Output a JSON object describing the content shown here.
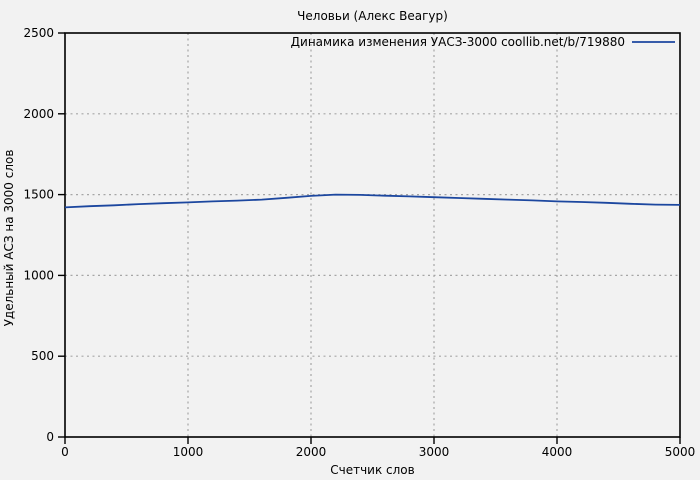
{
  "window": {
    "background_color": "#f2f2f2"
  },
  "chart_data": {
    "type": "line",
    "title": "Человьи (Алекс Веагур)",
    "xlabel": "Счетчик слов",
    "ylabel": "Удельный АСЗ на 3000 слов",
    "xlim": [
      0,
      5000
    ],
    "ylim": [
      0,
      2500
    ],
    "xticks": [
      0,
      1000,
      2000,
      3000,
      4000,
      5000
    ],
    "yticks": [
      0,
      500,
      1000,
      1500,
      2000,
      2500
    ],
    "grid": true,
    "legend_position": "top-right-inside",
    "colors": {
      "line": "#1c479f",
      "grid": "#a6a6a6",
      "axis": "#000000",
      "background": "#f2f2f2",
      "text": "#000000"
    },
    "series": [
      {
        "name": "Динамика изменения УАСЗ-3000 coollib.net/b/719880",
        "color": "#1c479f",
        "x": [
          0,
          200,
          400,
          600,
          800,
          1000,
          1200,
          1400,
          1600,
          1800,
          2000,
          2200,
          2400,
          2600,
          2800,
          3000,
          3200,
          3400,
          3600,
          3800,
          4000,
          4200,
          4400,
          4600,
          4800,
          5000
        ],
        "y": [
          1421,
          1428,
          1434,
          1441,
          1447,
          1452,
          1458,
          1463,
          1469,
          1480,
          1492,
          1500,
          1498,
          1493,
          1489,
          1484,
          1479,
          1474,
          1469,
          1464,
          1458,
          1454,
          1449,
          1443,
          1438,
          1436
        ]
      }
    ]
  }
}
